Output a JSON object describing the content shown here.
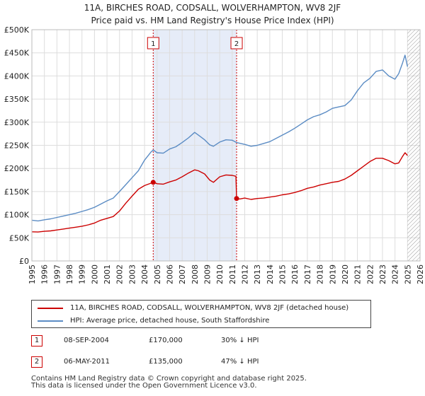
{
  "header": {
    "title_line1": "11A, BIRCHES ROAD, CODSALL, WOLVERHAMPTON, WV8 2JF",
    "title_line2": "Price paid vs. HM Land Registry's House Price Index (HPI)"
  },
  "colors": {
    "property": "#cc0000",
    "hpi": "#5b8cc4",
    "shade": "#e6ecf8",
    "grid": "#dddddd",
    "hatch": "#999999"
  },
  "chart_data": {
    "type": "line",
    "title": "Price paid vs. HM Land Registry's House Price Index (HPI)",
    "xlabel": "",
    "ylabel": "",
    "xlim": [
      1995,
      2026
    ],
    "ylim": [
      0,
      500000
    ],
    "x_ticks": [
      "1995",
      "1996",
      "1997",
      "1998",
      "1999",
      "2000",
      "2001",
      "2002",
      "2003",
      "2004",
      "2005",
      "2006",
      "2007",
      "2008",
      "2009",
      "2010",
      "2011",
      "2012",
      "2013",
      "2014",
      "2015",
      "2016",
      "2017",
      "2018",
      "2019",
      "2020",
      "2021",
      "2022",
      "2023",
      "2024",
      "2025",
      "2026"
    ],
    "y_ticks": [
      {
        "value": 0,
        "label": "£0"
      },
      {
        "value": 50000,
        "label": "£50K"
      },
      {
        "value": 100000,
        "label": "£100K"
      },
      {
        "value": 150000,
        "label": "£150K"
      },
      {
        "value": 200000,
        "label": "£200K"
      },
      {
        "value": 250000,
        "label": "£250K"
      },
      {
        "value": 300000,
        "label": "£300K"
      },
      {
        "value": 350000,
        "label": "£350K"
      },
      {
        "value": 400000,
        "label": "£400K"
      },
      {
        "value": 450000,
        "label": "£450K"
      },
      {
        "value": 500000,
        "label": "£500K"
      }
    ],
    "grid": true,
    "shaded_range": [
      2004.69,
      2011.35
    ],
    "future_hatch_from": 2025.0,
    "series": [
      {
        "name": "11A, BIRCHES ROAD, CODSALL, WOLVERHAMPTON, WV8 2JF (detached house)",
        "color": "#cc0000",
        "points": [
          [
            1995.0,
            63000
          ],
          [
            1995.5,
            62500
          ],
          [
            1996.0,
            64000
          ],
          [
            1996.5,
            65000
          ],
          [
            1997.0,
            67000
          ],
          [
            1997.5,
            69000
          ],
          [
            1998.0,
            71000
          ],
          [
            1998.5,
            73000
          ],
          [
            1999.0,
            75000
          ],
          [
            1999.5,
            78000
          ],
          [
            2000.0,
            82000
          ],
          [
            2000.5,
            88000
          ],
          [
            2001.0,
            92000
          ],
          [
            2001.5,
            96000
          ],
          [
            2002.0,
            108000
          ],
          [
            2002.5,
            125000
          ],
          [
            2003.0,
            140000
          ],
          [
            2003.5,
            155000
          ],
          [
            2004.0,
            163000
          ],
          [
            2004.5,
            168000
          ],
          [
            2004.69,
            170000
          ],
          [
            2005.0,
            167000
          ],
          [
            2005.5,
            166000
          ],
          [
            2006.0,
            171000
          ],
          [
            2006.5,
            175000
          ],
          [
            2007.0,
            182000
          ],
          [
            2007.5,
            190000
          ],
          [
            2008.0,
            197000
          ],
          [
            2008.3,
            195000
          ],
          [
            2008.8,
            188000
          ],
          [
            2009.2,
            175000
          ],
          [
            2009.5,
            170000
          ],
          [
            2010.0,
            182000
          ],
          [
            2010.5,
            186000
          ],
          [
            2011.0,
            185000
          ],
          [
            2011.3,
            183000
          ],
          [
            2011.35,
            135000
          ],
          [
            2011.6,
            134000
          ],
          [
            2012.0,
            136000
          ],
          [
            2012.5,
            133000
          ],
          [
            2013.0,
            135000
          ],
          [
            2013.5,
            136000
          ],
          [
            2014.0,
            138000
          ],
          [
            2014.5,
            140000
          ],
          [
            2015.0,
            143000
          ],
          [
            2015.5,
            145000
          ],
          [
            2016.0,
            148000
          ],
          [
            2016.5,
            152000
          ],
          [
            2017.0,
            157000
          ],
          [
            2017.5,
            160000
          ],
          [
            2018.0,
            164000
          ],
          [
            2018.5,
            167000
          ],
          [
            2019.0,
            170000
          ],
          [
            2019.5,
            172000
          ],
          [
            2020.0,
            177000
          ],
          [
            2020.5,
            185000
          ],
          [
            2021.0,
            195000
          ],
          [
            2021.5,
            205000
          ],
          [
            2022.0,
            215000
          ],
          [
            2022.5,
            222000
          ],
          [
            2023.0,
            222000
          ],
          [
            2023.5,
            217000
          ],
          [
            2024.0,
            210000
          ],
          [
            2024.3,
            212000
          ],
          [
            2024.6,
            226000
          ],
          [
            2024.8,
            234000
          ],
          [
            2025.0,
            228000
          ]
        ]
      },
      {
        "name": "HPI: Average price, detached house, South Staffordshire",
        "color": "#5b8cc4",
        "points": [
          [
            1995.0,
            88000
          ],
          [
            1995.5,
            86500
          ],
          [
            1996.0,
            89000
          ],
          [
            1996.5,
            91000
          ],
          [
            1997.0,
            94000
          ],
          [
            1997.5,
            97000
          ],
          [
            1998.0,
            100000
          ],
          [
            1998.5,
            103000
          ],
          [
            1999.0,
            107000
          ],
          [
            1999.5,
            111000
          ],
          [
            2000.0,
            116000
          ],
          [
            2000.5,
            123000
          ],
          [
            2001.0,
            130000
          ],
          [
            2001.5,
            136000
          ],
          [
            2002.0,
            150000
          ],
          [
            2002.5,
            165000
          ],
          [
            2003.0,
            180000
          ],
          [
            2003.5,
            195000
          ],
          [
            2004.0,
            218000
          ],
          [
            2004.5,
            235000
          ],
          [
            2004.69,
            240000
          ],
          [
            2005.0,
            234000
          ],
          [
            2005.5,
            233000
          ],
          [
            2006.0,
            242000
          ],
          [
            2006.5,
            247000
          ],
          [
            2007.0,
            256000
          ],
          [
            2007.5,
            266000
          ],
          [
            2008.0,
            278000
          ],
          [
            2008.3,
            272000
          ],
          [
            2008.8,
            262000
          ],
          [
            2009.2,
            251000
          ],
          [
            2009.5,
            248000
          ],
          [
            2010.0,
            257000
          ],
          [
            2010.5,
            262000
          ],
          [
            2011.0,
            261000
          ],
          [
            2011.35,
            256000
          ],
          [
            2012.0,
            252000
          ],
          [
            2012.5,
            248000
          ],
          [
            2013.0,
            250000
          ],
          [
            2013.5,
            254000
          ],
          [
            2014.0,
            258000
          ],
          [
            2014.5,
            265000
          ],
          [
            2015.0,
            272000
          ],
          [
            2015.5,
            279000
          ],
          [
            2016.0,
            287000
          ],
          [
            2016.5,
            296000
          ],
          [
            2017.0,
            305000
          ],
          [
            2017.5,
            312000
          ],
          [
            2018.0,
            316000
          ],
          [
            2018.5,
            322000
          ],
          [
            2019.0,
            330000
          ],
          [
            2019.5,
            333000
          ],
          [
            2020.0,
            336000
          ],
          [
            2020.5,
            348000
          ],
          [
            2021.0,
            368000
          ],
          [
            2021.5,
            385000
          ],
          [
            2022.0,
            395000
          ],
          [
            2022.5,
            410000
          ],
          [
            2023.0,
            413000
          ],
          [
            2023.5,
            400000
          ],
          [
            2024.0,
            393000
          ],
          [
            2024.3,
            405000
          ],
          [
            2024.6,
            428000
          ],
          [
            2024.8,
            445000
          ],
          [
            2025.0,
            420000
          ]
        ]
      }
    ],
    "annotations": [
      {
        "label": "1",
        "x": 2004.69,
        "y": 170000
      },
      {
        "label": "2",
        "x": 2011.35,
        "y": 135000
      }
    ]
  },
  "legend": {
    "items": [
      {
        "label": "11A, BIRCHES ROAD, CODSALL, WOLVERHAMPTON, WV8 2JF (detached house)",
        "color": "#cc0000"
      },
      {
        "label": "HPI: Average price, detached house, South Staffordshire",
        "color": "#5b8cc4"
      }
    ]
  },
  "sales": [
    {
      "id": "1",
      "date": "08-SEP-2004",
      "price": "£170,000",
      "hpi": "30% ↓ HPI"
    },
    {
      "id": "2",
      "date": "06-MAY-2011",
      "price": "£135,000",
      "hpi": "47% ↓ HPI"
    }
  ],
  "footer": {
    "line1": "Contains HM Land Registry data © Crown copyright and database right 2025.",
    "line2": "This data is licensed under the Open Government Licence v3.0."
  }
}
